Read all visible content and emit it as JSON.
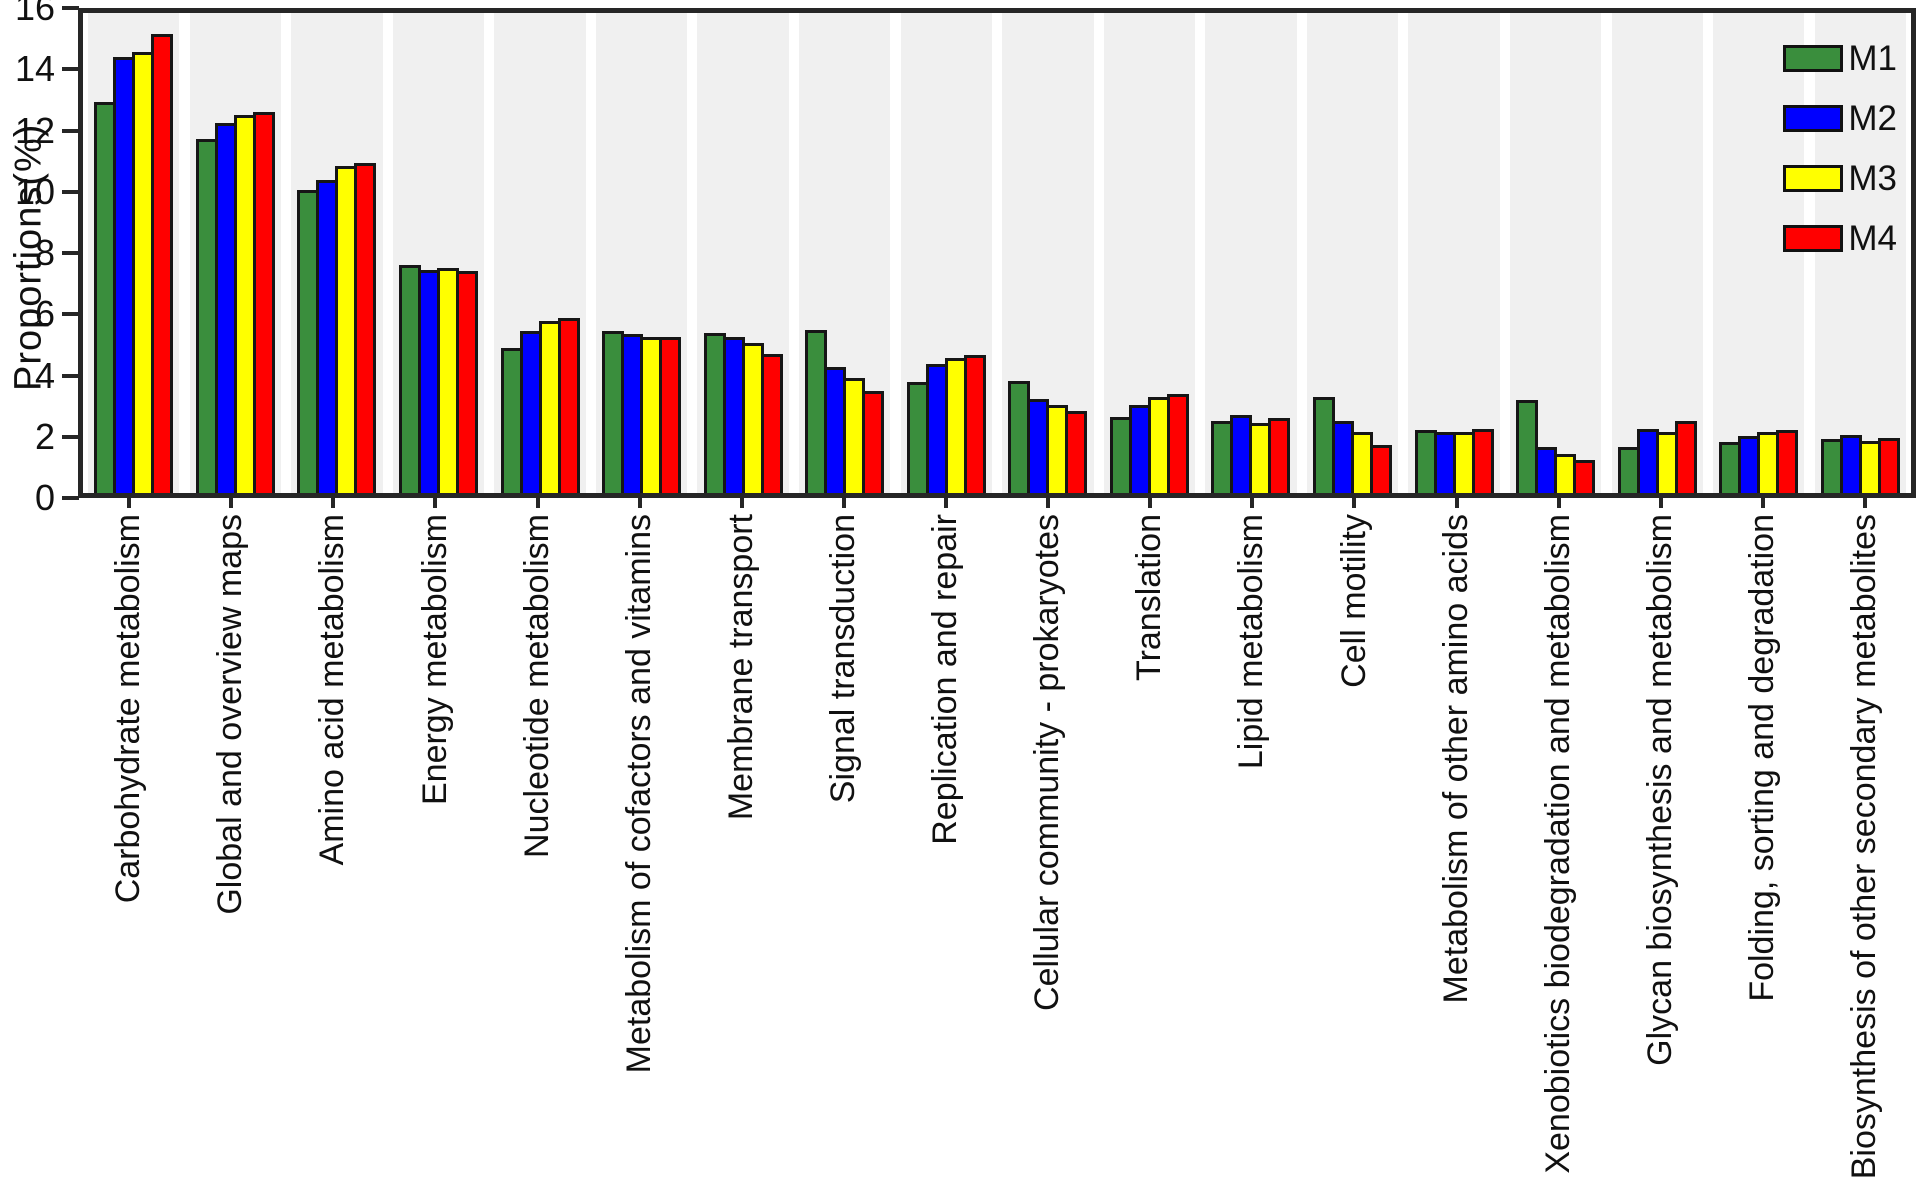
{
  "chart_data": {
    "type": "bar",
    "title": "",
    "xlabel": "",
    "ylabel": "Proportions(%)",
    "ylim": [
      0,
      16
    ],
    "y_tick_step": 2,
    "y_ticks": [
      0,
      2,
      4,
      6,
      8,
      10,
      12,
      14,
      16
    ],
    "grid": false,
    "legend_position": "top-right",
    "plot_band_color": "#f0f0f0",
    "frame_color": "#262626",
    "categories": [
      "Carbohydrate metabolism",
      "Global and overview maps",
      "Amino acid metabolism",
      "Energy metabolism",
      "Nucleotide metabolism",
      "Metabolism of cofactors and vitamins",
      "Membrane transport",
      "Signal transduction",
      "Replication and repair",
      "Cellular community - prokaryotes",
      "Translation",
      "Lipid metabolism",
      "Cell motility",
      "Metabolism of other amino acids",
      "Xenobiotics biodegradation and metabolism",
      "Glycan biosynthesis and metabolism",
      "Folding, sorting and degradation",
      "Biosynthesis of other secondary metabolites"
    ],
    "series": [
      {
        "name": "M1",
        "color": "#3A8E3D",
        "values": [
          13.05,
          11.8,
          10.1,
          7.6,
          4.85,
          5.4,
          5.35,
          5.45,
          3.7,
          3.75,
          2.55,
          2.4,
          3.2,
          2.1,
          3.1,
          1.55,
          1.7,
          1.8
        ]
      },
      {
        "name": "M2",
        "color": "#0000FF",
        "values": [
          14.55,
          12.35,
          10.45,
          7.45,
          5.4,
          5.3,
          5.2,
          4.2,
          4.3,
          3.15,
          2.95,
          2.6,
          2.4,
          2.05,
          1.55,
          2.15,
          1.9,
          1.95
        ]
      },
      {
        "name": "M3",
        "color": "#FFFF00",
        "values": [
          14.7,
          12.6,
          10.9,
          7.5,
          5.75,
          5.2,
          5.0,
          3.85,
          4.5,
          2.95,
          3.2,
          2.35,
          2.05,
          2.05,
          1.3,
          2.05,
          2.05,
          1.75
        ]
      },
      {
        "name": "M4",
        "color": "#FF0000",
        "values": [
          15.3,
          12.7,
          11.0,
          7.4,
          5.85,
          5.2,
          4.65,
          3.4,
          4.6,
          2.75,
          3.3,
          2.5,
          1.6,
          2.15,
          1.1,
          2.4,
          2.1,
          1.85
        ]
      }
    ]
  }
}
